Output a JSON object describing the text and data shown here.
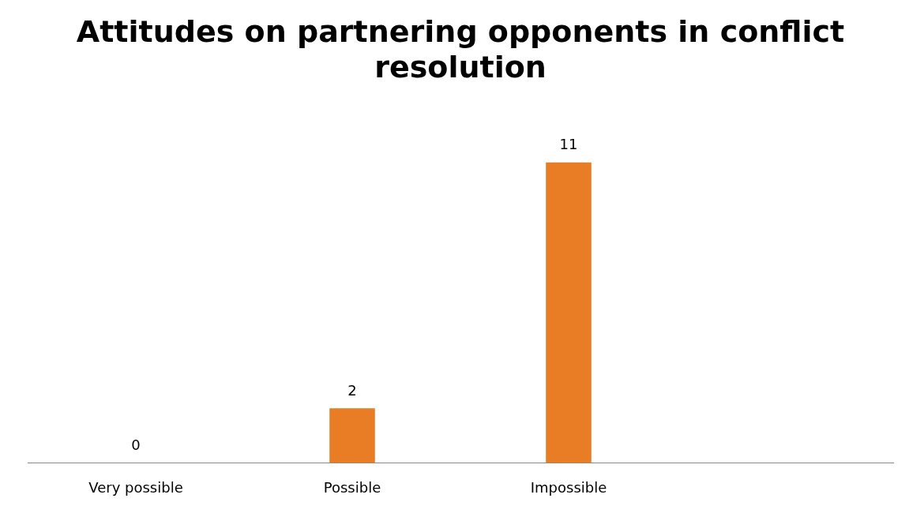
{
  "chart_data": {
    "type": "bar",
    "title": "Attitudes on partnering opponents in conflict resolution",
    "categories": [
      "Very possible",
      "Possible",
      "Impossible",
      null
    ],
    "values": [
      0,
      2,
      11,
      null
    ],
    "color": "#e87d26",
    "data_labels": true
  }
}
